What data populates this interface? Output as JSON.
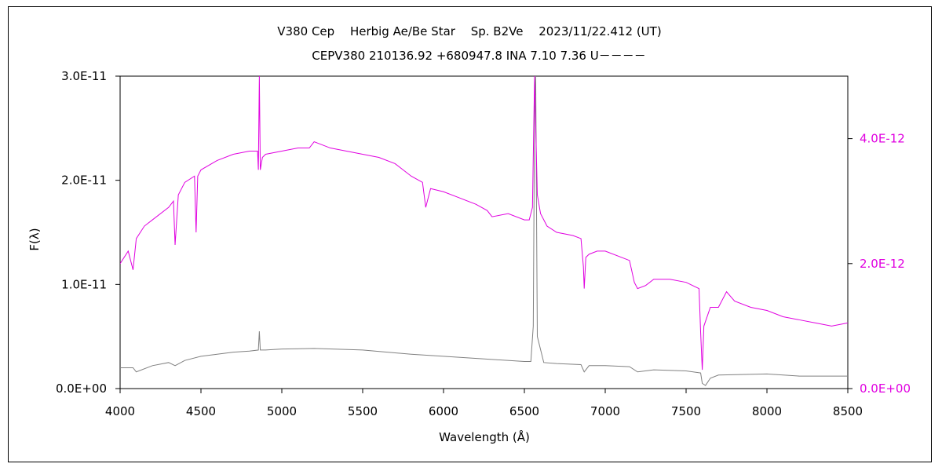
{
  "chart_data": {
    "type": "line",
    "title": "V380 Cep　 Herbig Ae/Be Star 　Sp. B2Ve　 2023/11/22.412 (UT)",
    "subtitle": "CEPV380 210136.92 +680947.8 INA 7.10 7.36 U－－－－",
    "xlabel": "Wavelength (Å)",
    "ylabel": "F(λ)",
    "xlim": [
      4000,
      8500
    ],
    "ylim_left": [
      0,
      3e-11
    ],
    "ylim_right": [
      0,
      5e-12
    ],
    "x_ticks": [
      "4000",
      "4500",
      "5000",
      "5500",
      "6000",
      "6500",
      "7000",
      "7500",
      "8000",
      "8500"
    ],
    "y_ticks_left": [
      "0.0E+00",
      "1.0E-11",
      "2.0E-11",
      "3.0E-11"
    ],
    "y_ticks_right": [
      "0.0E+00",
      "2.0E-12",
      "4.0E-12"
    ],
    "grid": false,
    "series": [
      {
        "axis": "left",
        "color": "#808080",
        "x": [
          4000,
          4080,
          4100,
          4200,
          4300,
          4340,
          4400,
          4500,
          4600,
          4700,
          4800,
          4855,
          4861,
          4867,
          4900,
          5000,
          5200,
          5500,
          5800,
          6000,
          6300,
          6500,
          6540,
          6555,
          6563,
          6570,
          6580,
          6620,
          6700,
          6850,
          6870,
          6900,
          7000,
          7150,
          7200,
          7300,
          7500,
          7590,
          7600,
          7620,
          7650,
          7700,
          8000,
          8200,
          8500
        ],
        "values": [
          2e-12,
          2e-12,
          1.6e-12,
          2.2e-12,
          2.5e-12,
          2.2e-12,
          2.7e-12,
          3.1e-12,
          3.3e-12,
          3.5e-12,
          3.6e-12,
          3.7e-12,
          5.5e-12,
          3.7e-12,
          3.7e-12,
          3.8e-12,
          3.85e-12,
          3.7e-12,
          3.3e-12,
          3.1e-12,
          2.8e-12,
          2.6e-12,
          2.6e-12,
          6e-12,
          2.7e-11,
          3e-11,
          5e-12,
          2.5e-12,
          2.4e-12,
          2.3e-12,
          1.6e-12,
          2.2e-12,
          2.2e-12,
          2.1e-12,
          1.6e-12,
          1.8e-12,
          1.7e-12,
          1.5e-12,
          5e-13,
          3e-13,
          1e-12,
          1.3e-12,
          1.4e-12,
          1.2e-12,
          1.2e-12
        ]
      },
      {
        "axis": "right",
        "color": "#e000e0",
        "x": [
          4000,
          4050,
          4080,
          4100,
          4150,
          4200,
          4300,
          4330,
          4340,
          4360,
          4400,
          4460,
          4470,
          4480,
          4500,
          4600,
          4700,
          4800,
          4850,
          4855,
          4861,
          4867,
          4880,
          4900,
          5000,
          5100,
          5170,
          5200,
          5300,
          5400,
          5500,
          5600,
          5700,
          5800,
          5870,
          5890,
          5920,
          6000,
          6100,
          6200,
          6270,
          6300,
          6400,
          6500,
          6530,
          6550,
          6563,
          6580,
          6600,
          6640,
          6700,
          6800,
          6850,
          6865,
          6870,
          6880,
          6900,
          6950,
          7000,
          7100,
          7150,
          7180,
          7200,
          7250,
          7300,
          7400,
          7500,
          7580,
          7590,
          7600,
          7610,
          7630,
          7650,
          7700,
          7750,
          7800,
          7900,
          8000,
          8100,
          8200,
          8300,
          8400,
          8500
        ],
        "values": [
          2e-12,
          2.2e-12,
          1.9e-12,
          2.4e-12,
          2.6e-12,
          2.7e-12,
          2.9e-12,
          3e-12,
          2.3e-12,
          3.1e-12,
          3.3e-12,
          3.4e-12,
          2.5e-12,
          3.4e-12,
          3.5e-12,
          3.65e-12,
          3.75e-12,
          3.8e-12,
          3.8e-12,
          3.5e-12,
          5e-12,
          3.5e-12,
          3.7e-12,
          3.75e-12,
          3.8e-12,
          3.85e-12,
          3.85e-12,
          3.95e-12,
          3.85e-12,
          3.8e-12,
          3.75e-12,
          3.7e-12,
          3.6e-12,
          3.4e-12,
          3.3e-12,
          2.9e-12,
          3.2e-12,
          3.15e-12,
          3.05e-12,
          2.95e-12,
          2.85e-12,
          2.75e-12,
          2.8e-12,
          2.7e-12,
          2.7e-12,
          2.9e-12,
          5e-12,
          3.1e-12,
          2.8e-12,
          2.6e-12,
          2.5e-12,
          2.45e-12,
          2.4e-12,
          1.95e-12,
          1.6e-12,
          2.1e-12,
          2.15e-12,
          2.2e-12,
          2.2e-12,
          2.1e-12,
          2.05e-12,
          1.7e-12,
          1.6e-12,
          1.65e-12,
          1.75e-12,
          1.75e-12,
          1.7e-12,
          1.6e-12,
          9e-13,
          3e-13,
          1e-12,
          1.15e-12,
          1.3e-12,
          1.3e-12,
          1.55e-12,
          1.4e-12,
          1.3e-12,
          1.25e-12,
          1.15e-12,
          1.1e-12,
          1.05e-12,
          1e-12,
          1.05e-12
        ]
      }
    ]
  }
}
